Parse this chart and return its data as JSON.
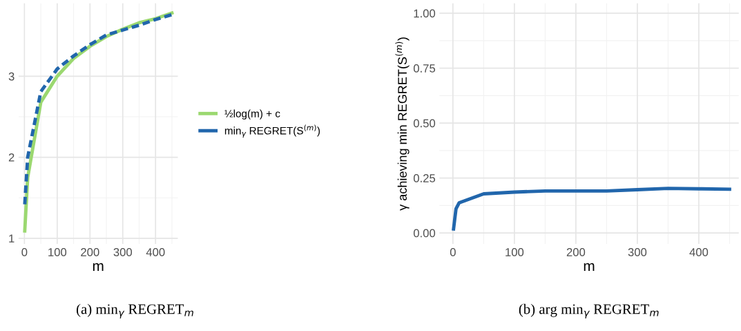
{
  "chart_data": [
    {
      "type": "line",
      "xlabel": "m",
      "xlim": [
        -18,
        468
      ],
      "ylim": [
        0.93,
        3.9
      ],
      "xticks": [
        0,
        100,
        200,
        300,
        400
      ],
      "yticks": [
        1,
        2,
        3
      ],
      "grid": true,
      "legend": "right",
      "annotations": [
        "(a) min$_{γ}$ REGRET$_{m}$"
      ],
      "series": [
        {
          "name": "½log(m) + c",
          "color": "#9bd870",
          "line_style": "solid",
          "x": [
            1,
            10,
            50,
            100,
            150,
            200,
            250,
            300,
            350,
            400,
            450
          ],
          "values": [
            1.09,
            1.75,
            2.68,
            3.0,
            3.22,
            3.37,
            3.49,
            3.58,
            3.66,
            3.71,
            3.78
          ]
        },
        {
          "name": "min$_{γ}$ REGRET(S$^{(m)}$)",
          "color": "#2166ac",
          "line_style": "dashed",
          "x": [
            1,
            10,
            50,
            100,
            150,
            200,
            250,
            300,
            350,
            400,
            450
          ],
          "values": [
            1.42,
            2.0,
            2.81,
            3.09,
            3.25,
            3.39,
            3.51,
            3.57,
            3.63,
            3.7,
            3.76
          ]
        }
      ]
    },
    {
      "type": "line",
      "xlabel": "m",
      "ylabel": "γ achieving min REGRET(S$^{(m)}$)",
      "xlim": [
        -22,
        465
      ],
      "ylim": [
        -0.05,
        1.045
      ],
      "xticks": [
        0,
        100,
        200,
        300,
        400
      ],
      "yticks": [
        {
          "value": 0,
          "label": "0.00"
        },
        {
          "value": 0.25,
          "label": "0.25"
        },
        {
          "value": 0.5,
          "label": "0.50"
        },
        {
          "value": 0.75,
          "label": "0.75"
        },
        {
          "value": 1,
          "label": "1.00"
        }
      ],
      "grid": true,
      "annotations": [
        "(b) arg min$_{γ}$ REGRET$_{m}$"
      ],
      "series": [
        {
          "color": "#2166ac",
          "line_style": "solid",
          "x": [
            1,
            5,
            10,
            50,
            100,
            150,
            200,
            250,
            300,
            350,
            400,
            450
          ],
          "values": [
            0.018,
            0.11,
            0.137,
            0.178,
            0.186,
            0.191,
            0.191,
            0.191,
            0.197,
            0.203,
            0.201,
            0.199
          ]
        }
      ]
    }
  ]
}
